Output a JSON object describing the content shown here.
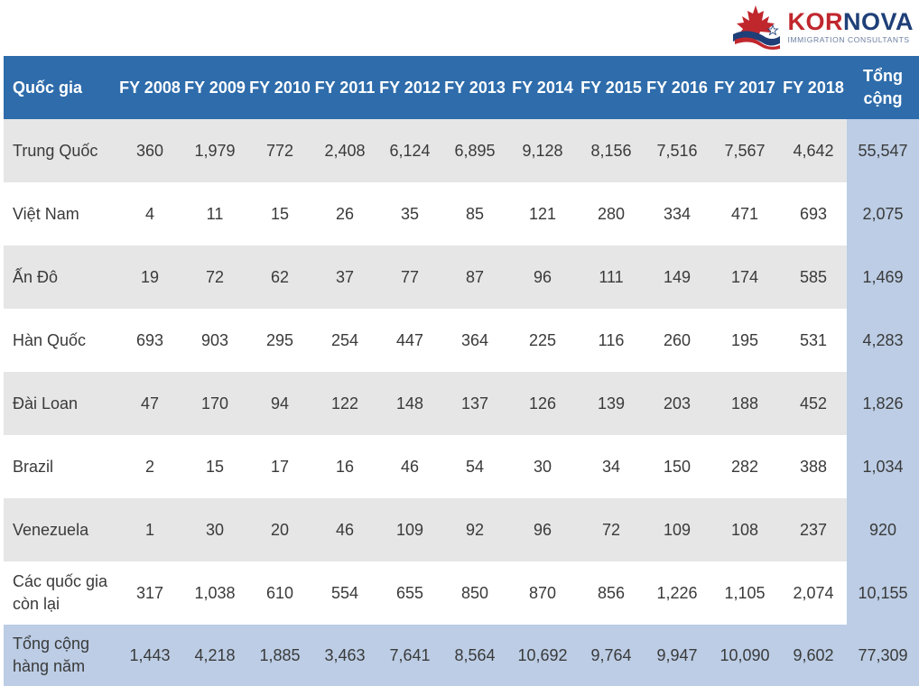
{
  "brand": {
    "name_part1": "KOR",
    "name_part2": "NOVA",
    "tagline": "IMMIGRATION CONSULTANTS"
  },
  "colors": {
    "header": "#2e6cab",
    "total_column": "#bccde5",
    "shaded_row": "#e6e6e6",
    "brand_red": "#c0272d",
    "brand_blue": "#1f3f78"
  },
  "chart_data": {
    "type": "table",
    "columns": [
      {
        "key": "country",
        "label": "Quốc gia"
      },
      {
        "key": "fy2008",
        "label": "FY 2008"
      },
      {
        "key": "fy2009",
        "label": "FY 2009"
      },
      {
        "key": "fy2010",
        "label": "FY 2010"
      },
      {
        "key": "fy2011",
        "label": "FY 2011"
      },
      {
        "key": "fy2012",
        "label": "FY 2012"
      },
      {
        "key": "fy2013",
        "label": "FY 2013"
      },
      {
        "key": "fy2014",
        "label": "FY 2014"
      },
      {
        "key": "fy2015",
        "label": "FY 2015"
      },
      {
        "key": "fy2016",
        "label": "FY 2016"
      },
      {
        "key": "fy2017",
        "label": "FY 2017"
      },
      {
        "key": "fy2018",
        "label": "FY 2018"
      },
      {
        "key": "total",
        "label": "Tổng cộng"
      }
    ],
    "rows": [
      {
        "country": "Trung Quốc",
        "values": [
          "360",
          "1,979",
          "772",
          "2,408",
          "6,124",
          "6,895",
          "9,128",
          "8,156",
          "7,516",
          "7,567",
          "4,642"
        ],
        "total": "55,547"
      },
      {
        "country": "Việt Nam",
        "values": [
          "4",
          "11",
          "15",
          "26",
          "35",
          "85",
          "121",
          "280",
          "334",
          "471",
          "693"
        ],
        "total": "2,075"
      },
      {
        "country": "Ấn Đô",
        "values": [
          "19",
          "72",
          "62",
          "37",
          "77",
          "87",
          "96",
          "111",
          "149",
          "174",
          "585"
        ],
        "total": "1,469"
      },
      {
        "country": "Hàn Quốc",
        "values": [
          "693",
          "903",
          "295",
          "254",
          "447",
          "364",
          "225",
          "116",
          "260",
          "195",
          "531"
        ],
        "total": "4,283"
      },
      {
        "country": "Đài Loan",
        "values": [
          "47",
          "170",
          "94",
          "122",
          "148",
          "137",
          "126",
          "139",
          "203",
          "188",
          "452"
        ],
        "total": "1,826"
      },
      {
        "country": "Brazil",
        "values": [
          "2",
          "15",
          "17",
          "16",
          "46",
          "54",
          "30",
          "34",
          "150",
          "282",
          "388"
        ],
        "total": "1,034"
      },
      {
        "country": "Venezuela",
        "values": [
          "1",
          "30",
          "20",
          "46",
          "109",
          "92",
          "96",
          "72",
          "109",
          "108",
          "237"
        ],
        "total": "920"
      },
      {
        "country": "Các quốc gia còn lại",
        "values": [
          "317",
          "1,038",
          "610",
          "554",
          "655",
          "850",
          "870",
          "856",
          "1,226",
          "1,105",
          "2,074"
        ],
        "total": "10,155"
      }
    ],
    "footer": {
      "country": "Tổng cộng hàng năm",
      "values": [
        "1,443",
        "4,218",
        "1,885",
        "3,463",
        "7,641",
        "8,564",
        "10,692",
        "9,764",
        "9,947",
        "10,090",
        "9,602"
      ],
      "total": "77,309"
    }
  }
}
